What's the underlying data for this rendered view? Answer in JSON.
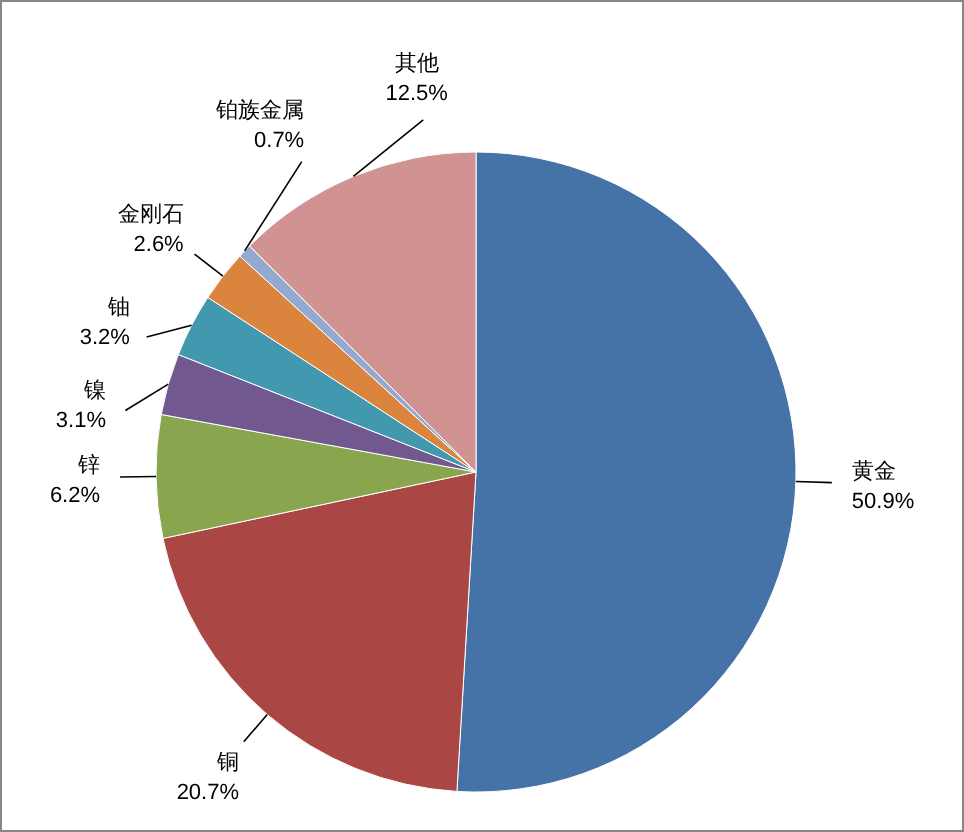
{
  "chart_data": {
    "type": "pie",
    "categories": [
      "黄金",
      "铜",
      "锌",
      "镍",
      "铀",
      "金刚石",
      "铂族金属",
      "其他"
    ],
    "values": [
      50.9,
      20.7,
      6.2,
      3.1,
      3.2,
      2.6,
      0.7,
      12.5
    ],
    "value_labels": [
      "50.9%",
      "20.7%",
      "6.2%",
      "3.1%",
      "3.2%",
      "2.6%",
      "0.7%",
      "12.5%"
    ],
    "colors": [
      "#4572a7",
      "#aa4643",
      "#89a54e",
      "#71588f",
      "#4198af",
      "#db843d",
      "#93a9cf",
      "#d19392"
    ],
    "legend": false
  }
}
